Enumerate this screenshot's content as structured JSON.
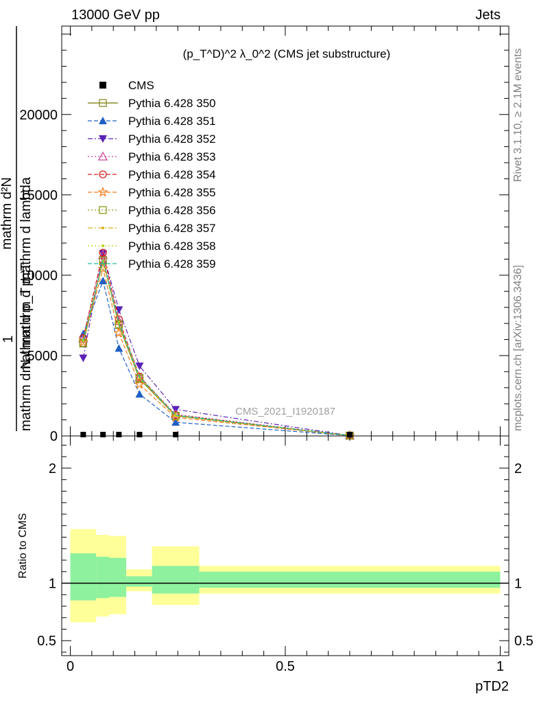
{
  "header": {
    "left": "13000 GeV pp",
    "right": "Jets"
  },
  "side_text": {
    "rivet": "Rivet 3.1.10, ≥ 2.1M events",
    "site": "mcplots.cern.ch [arXiv:1306.3436]"
  },
  "watermark": "CMS_2021_I1920187",
  "main_ylabel": {
    "line1": "mathrm d²N",
    "line2": "1",
    "line3": "mathrm d p_T mathrm d lambda",
    "line4": "mathrm d N / mathrm d p_T"
  },
  "ratio_ylabel": "Ratio to CMS",
  "xlabel": "pTD2",
  "colors": {
    "ratio_band_inner": "#8ef19e",
    "ratio_band_outer": "#ffff99",
    "data": "#000000"
  },
  "chart_data": [
    {
      "type": "line",
      "title": "(p_T^D)^2 λ_0^2 (CMS jet substructure)",
      "xlabel": "pTD2",
      "ylabel": "1/(mathrm dN/mathrm dp_T) mathrm d²N/(mathrm dp_T mathrm d lambda)",
      "xlim": [
        -0.02,
        1.02
      ],
      "ylim": [
        0,
        25500
      ],
      "yticks": [
        0,
        5000,
        10000,
        15000,
        20000
      ],
      "ytick_labels": [
        "0",
        "5000",
        "10000",
        "15000",
        "20000"
      ],
      "legend_position": "top-left",
      "x": [
        0.03,
        0.076,
        0.113,
        0.161,
        0.245,
        0.65
      ],
      "data": {
        "name": "CMS",
        "y": [
          5,
          6,
          5,
          3,
          1,
          0
        ]
      },
      "series": [
        {
          "name": "Pythia 6.428 350",
          "color": "#8b8b2a",
          "marker": "square-open",
          "dash": "solid",
          "y": [
            5750,
            10950,
            6900,
            3550,
            1250,
            20
          ]
        },
        {
          "name": "Pythia 6.428 351",
          "color": "#1f5fc4",
          "marker": "triangle-up",
          "dash": "dashed",
          "y": [
            6350,
            9650,
            5450,
            2600,
            850,
            15
          ]
        },
        {
          "name": "Pythia 6.428 352",
          "color": "#5b22b6",
          "marker": "triangle-down",
          "dash": "dashdot",
          "y": [
            4850,
            11350,
            7850,
            4350,
            1650,
            30
          ]
        },
        {
          "name": "Pythia 6.428 353",
          "color": "#c7469b",
          "marker": "triangle-open",
          "dash": "dotted",
          "y": [
            6050,
            11250,
            7150,
            3650,
            1350,
            20
          ]
        },
        {
          "name": "Pythia 6.428 354",
          "color": "#d62020",
          "marker": "circle-open",
          "dash": "dashed",
          "y": [
            6100,
            11400,
            7250,
            3700,
            1300,
            20
          ]
        },
        {
          "name": "Pythia 6.428 355",
          "color": "#f07c1a",
          "marker": "star-open",
          "dash": "dashed",
          "y": [
            5850,
            10400,
            6400,
            3200,
            1150,
            20
          ]
        },
        {
          "name": "Pythia 6.428 356",
          "color": "#8a9b1c",
          "marker": "square-open",
          "dash": "dotted",
          "y": [
            5800,
            10900,
            6950,
            3600,
            1250,
            20
          ]
        },
        {
          "name": "Pythia 6.428 357",
          "color": "#d8b21a",
          "marker": "dot",
          "dash": "dashdot",
          "y": [
            5900,
            10850,
            7000,
            3600,
            1250,
            20
          ]
        },
        {
          "name": "Pythia 6.428 358",
          "color": "#b5d616",
          "marker": "dot",
          "dash": "dotted",
          "y": [
            5950,
            10900,
            7050,
            3650,
            1280,
            20
          ]
        },
        {
          "name": "Pythia 6.428 359",
          "color": "#1fbf9a",
          "marker": "none",
          "dash": "dashed",
          "y": [
            5900,
            10950,
            7050,
            3650,
            1280,
            20
          ]
        }
      ]
    },
    {
      "type": "area",
      "ylabel": "Ratio to CMS",
      "xlabel": "pTD2",
      "xlim": [
        -0.02,
        1.02
      ],
      "ylim": [
        0.37,
        2.28
      ],
      "xticks": [
        0,
        0.5,
        1
      ],
      "xtick_labels": [
        "0",
        "0.5",
        "1"
      ],
      "yticks": [
        0.5,
        1,
        2
      ],
      "ytick_labels": [
        "0.5",
        "1",
        "2"
      ],
      "reference_line": 1,
      "bins": [
        {
          "lo": 0.0,
          "hi": 0.06,
          "inner": [
            0.85,
            1.26
          ],
          "outer": [
            0.66,
            1.47
          ]
        },
        {
          "lo": 0.06,
          "hi": 0.09,
          "inner": [
            0.87,
            1.23
          ],
          "outer": [
            0.71,
            1.42
          ]
        },
        {
          "lo": 0.09,
          "hi": 0.13,
          "inner": [
            0.88,
            1.22
          ],
          "outer": [
            0.73,
            1.41
          ]
        },
        {
          "lo": 0.13,
          "hi": 0.19,
          "inner": [
            0.97,
            1.06
          ],
          "outer": [
            0.93,
            1.12
          ]
        },
        {
          "lo": 0.19,
          "hi": 0.3,
          "inner": [
            0.91,
            1.15
          ],
          "outer": [
            0.81,
            1.32
          ]
        },
        {
          "lo": 0.3,
          "hi": 1.0,
          "inner": [
            0.96,
            1.1
          ],
          "outer": [
            0.91,
            1.15
          ]
        }
      ]
    }
  ]
}
